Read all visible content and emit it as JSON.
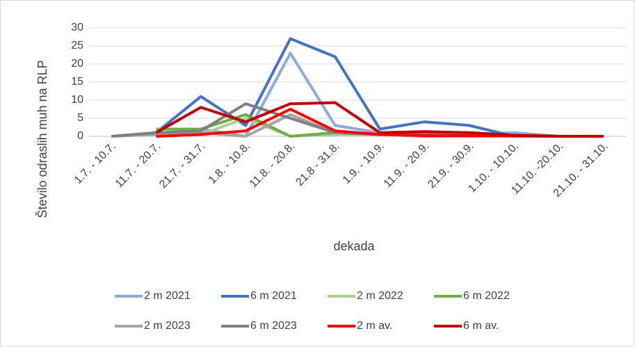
{
  "chart_data": {
    "type": "line",
    "x_label": "dekada",
    "y_label": "Število odraslih muh na RLP",
    "categories": [
      "1.7. - 10.7.",
      "11.7. - 20.7.",
      "21.7. - 31.7.",
      "1.8. - 10.8.",
      "11.8. - 20.8.",
      "21.8 - 31.8.",
      "1.9. - 10.9.",
      "11.9. - 20.9.",
      "21.9. - 30.9.",
      "1.10. - 10.10.",
      "11.10. -20.10.",
      "21.10. - 31.10."
    ],
    "series": [
      {
        "name": "2 m 2021",
        "color": "#8faadc",
        "values": [
          null,
          0.5,
          2,
          0,
          23,
          3,
          1,
          0.5,
          0.5,
          1,
          0,
          0
        ]
      },
      {
        "name": "6 m 2021",
        "color": "#4472c4",
        "values": [
          null,
          1,
          11,
          3,
          27,
          22,
          2,
          4,
          3,
          0,
          0,
          0
        ]
      },
      {
        "name": "2 m 2022",
        "color": "#a9d18e",
        "values": [
          null,
          0,
          0.5,
          5,
          0,
          0.5,
          0.5,
          0,
          0,
          0,
          0,
          0
        ]
      },
      {
        "name": "6 m 2022",
        "color": "#70ad47",
        "values": [
          null,
          2,
          2,
          6,
          0,
          1,
          0.5,
          0,
          0,
          0,
          0,
          0
        ]
      },
      {
        "name": "2 m 2023",
        "color": "#a5a5a5",
        "values": [
          0,
          0.5,
          1,
          0,
          6,
          1,
          0.5,
          0,
          0,
          0,
          0,
          0
        ]
      },
      {
        "name": "6 m 2023",
        "color": "#7f7f7f",
        "values": [
          0,
          1,
          1.5,
          9,
          5,
          1,
          0.5,
          0.5,
          0.5,
          0,
          0,
          0
        ]
      },
      {
        "name": "2 m av.",
        "color": "#ff0000",
        "values": [
          null,
          0,
          0.5,
          1.5,
          7.5,
          1.5,
          0.5,
          0.2,
          0.2,
          0.2,
          0,
          0
        ]
      },
      {
        "name": "6 m av.",
        "color": "#c00000",
        "values": [
          null,
          1,
          8,
          4,
          9,
          9.3,
          1,
          1.3,
          1,
          0.3,
          0,
          0
        ]
      }
    ],
    "ylim": [
      0,
      30
    ],
    "yticks": [
      0,
      5,
      10,
      15,
      20,
      25,
      30
    ],
    "grid": true
  }
}
